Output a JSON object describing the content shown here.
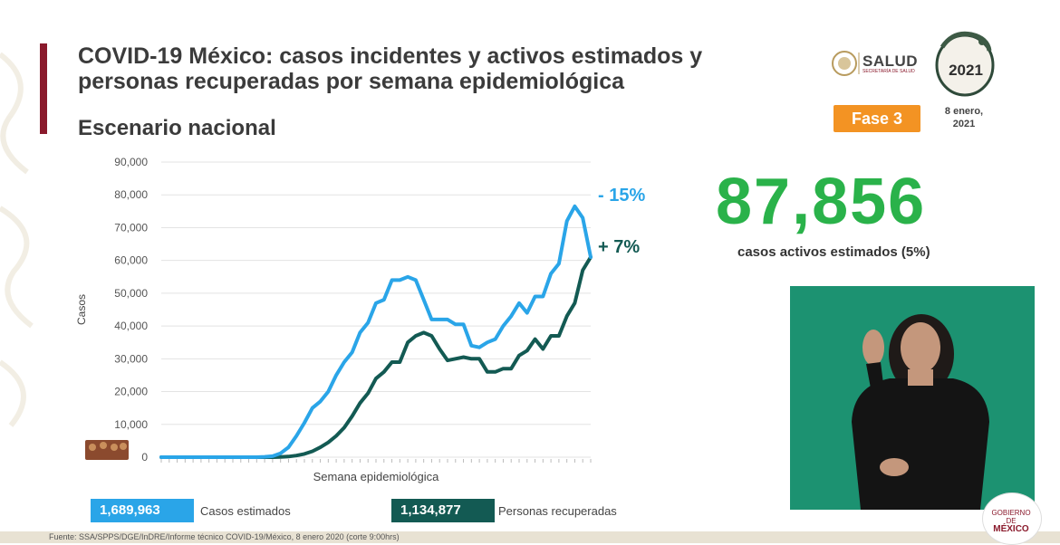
{
  "header": {
    "title": "COVID-19 México: casos incidentes y activos estimados y personas recuperadas por semana epidemiológica",
    "subtitle": "Escenario nacional",
    "salud_logo": "SALUD",
    "salud_sub": "SECRETARÍA DE SALUD",
    "seal_year": "2021",
    "phase_badge": "Fase 3",
    "date_line1": "8 enero,",
    "date_line2": "2021"
  },
  "highlight": {
    "value": "87,856",
    "caption": "casos activos estimados (5%)"
  },
  "legend": {
    "estimated_value": "1,689,963",
    "estimated_label": "Casos estimados",
    "recovered_value": "1,134,877",
    "recovered_label": "Personas recuperadas"
  },
  "footer": {
    "source": "Fuente: SSA/SPPS/DGE/InDRE/Informe técnico COVID-19/México, 8 enero 2020 (corte 9:00hrs)",
    "gob_line1": "GOBIERNO DE",
    "gob_line2": "MÉXICO",
    "left_mark": "MÉXICO"
  },
  "colors": {
    "estimated": "#2aa5e8",
    "recovered": "#135a53",
    "accent": "#8a1a2c",
    "highlight": "#2ab24a",
    "badge": "#f39323"
  },
  "icons": [
    "salud-logo-icon",
    "bicentennial-seal-icon",
    "gobierno-mexico-logo-icon",
    "interpreter-video-icon"
  ],
  "chart_data": {
    "type": "line",
    "ylabel": "Casos",
    "xlabel": "Semana epidemiológica",
    "ylim": [
      0,
      90000
    ],
    "yticks": [
      "90,000",
      "80,000",
      "70,000",
      "60,000",
      "50,000",
      "40,000",
      "30,000",
      "20,000",
      "10,000",
      "0"
    ],
    "ytick_values": [
      90000,
      80000,
      70000,
      60000,
      50000,
      40000,
      30000,
      20000,
      10000,
      0
    ],
    "grid": true,
    "series": [
      {
        "name": "Casos estimados",
        "color": "#2aa5e8",
        "end_label": "- 15%",
        "values": [
          0,
          0,
          0,
          0,
          0,
          0,
          0,
          0,
          0,
          0,
          0,
          0,
          0,
          100,
          300,
          1200,
          3000,
          6500,
          10500,
          15000,
          17000,
          20000,
          25000,
          29000,
          32000,
          38000,
          41000,
          47000,
          48000,
          54000,
          54000,
          55000,
          54000,
          48000,
          42000,
          42000,
          42000,
          40500,
          40500,
          34000,
          33500,
          35000,
          36000,
          40000,
          43000,
          47000,
          44000,
          49000,
          49000,
          56000,
          59000,
          72000,
          76500,
          73000,
          61000
        ]
      },
      {
        "name": "Personas recuperadas",
        "color": "#135a53",
        "end_label": "+ 7%",
        "values": [
          0,
          0,
          0,
          0,
          0,
          0,
          0,
          0,
          0,
          0,
          0,
          0,
          0,
          0,
          0,
          50,
          200,
          500,
          1000,
          1800,
          3000,
          4500,
          6500,
          9000,
          12500,
          16500,
          19500,
          24000,
          26000,
          29000,
          29000,
          35000,
          37000,
          38000,
          37000,
          33000,
          29500,
          30000,
          30500,
          30000,
          30000,
          26000,
          26000,
          27000,
          27000,
          31000,
          32500,
          36000,
          33000,
          37000,
          37000,
          43000,
          47000,
          57000,
          61000
        ]
      }
    ]
  }
}
